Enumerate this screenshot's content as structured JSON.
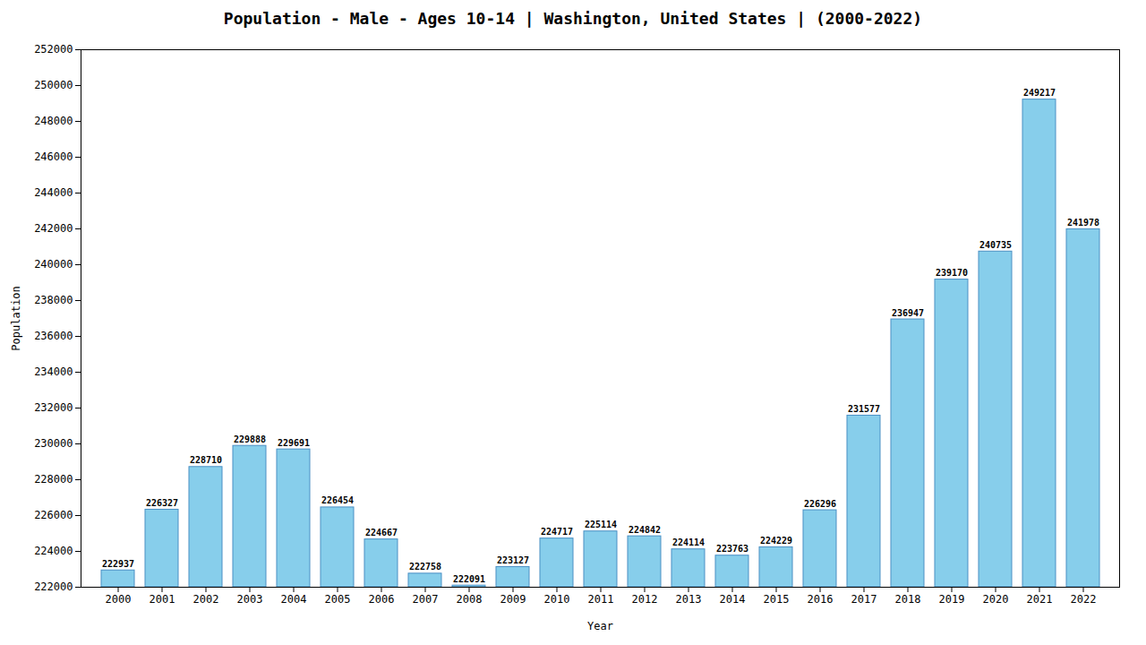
{
  "chart_data": {
    "type": "bar",
    "title": "Population - Male - Ages 10-14 | Washington, United States |  (2000-2022)",
    "xlabel": "Year",
    "ylabel": "Population",
    "categories": [
      "2000",
      "2001",
      "2002",
      "2003",
      "2004",
      "2005",
      "2006",
      "2007",
      "2008",
      "2009",
      "2010",
      "2011",
      "2012",
      "2013",
      "2014",
      "2015",
      "2016",
      "2017",
      "2018",
      "2019",
      "2020",
      "2021",
      "2022"
    ],
    "values": [
      222937,
      226327,
      228710,
      229888,
      229691,
      226454,
      224667,
      222758,
      222091,
      223127,
      224717,
      225114,
      224842,
      224114,
      223763,
      224229,
      226296,
      231577,
      236947,
      239170,
      240735,
      249217,
      241978
    ],
    "color": "#87CEEB",
    "ylim": [
      222000,
      252000
    ],
    "yticks": [
      222000,
      224000,
      226000,
      228000,
      230000,
      232000,
      234000,
      236000,
      238000,
      240000,
      242000,
      244000,
      246000,
      248000,
      250000,
      252000
    ],
    "grid": false,
    "data_labels": true
  }
}
